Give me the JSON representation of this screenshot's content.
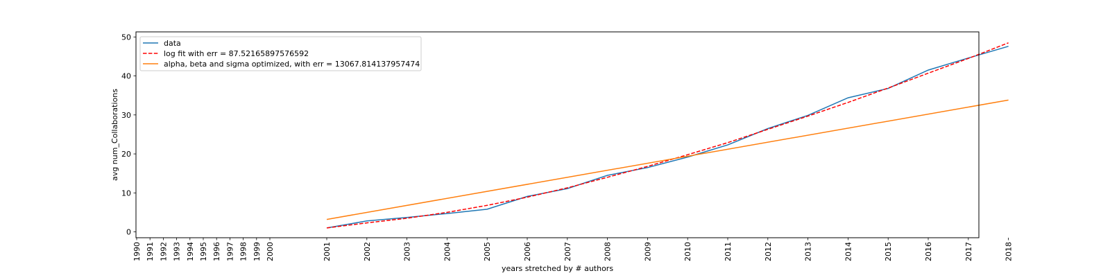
{
  "chart_data": {
    "type": "line",
    "title": "",
    "xlabel": "years stretched by # authors",
    "ylabel": "avg num_Collaborations",
    "x_categories": [
      "1990",
      "1991",
      "1992",
      "1993",
      "1994",
      "1995",
      "1996",
      "1997",
      "1998",
      "1999",
      "2000",
      "2001",
      "2002",
      "2003",
      "2004",
      "2005",
      "2006",
      "2007",
      "2008",
      "2009",
      "2010",
      "2011",
      "2012",
      "2013",
      "2014",
      "2015",
      "2016",
      "2017",
      "2018"
    ],
    "y_ticks": [
      0,
      10,
      20,
      30,
      40,
      50
    ],
    "ylim": [
      -1.5,
      51.3
    ],
    "legend_position": "upper-left",
    "grid": false,
    "series": [
      {
        "name": "data",
        "color": "#1f77b4",
        "style": "solid",
        "x": [
          "2001",
          "2002",
          "2003",
          "2004",
          "2005",
          "2006",
          "2007",
          "2008",
          "2009",
          "2010",
          "2011",
          "2012",
          "2013",
          "2014",
          "2015",
          "2016",
          "2017",
          "2018"
        ],
        "y": [
          1.0,
          2.8,
          3.7,
          4.7,
          5.8,
          9.1,
          11.1,
          14.5,
          16.5,
          19.2,
          22.3,
          26.5,
          29.9,
          34.4,
          36.8,
          41.5,
          44.6,
          47.6
        ]
      },
      {
        "name": "log fit with err = 87.52165897576592",
        "color": "#ff0000",
        "style": "dashed",
        "x": [
          "2001",
          "2002",
          "2003",
          "2004",
          "2005",
          "2006",
          "2007",
          "2008",
          "2009",
          "2010",
          "2011",
          "2012",
          "2013",
          "2014",
          "2015",
          "2016",
          "2017",
          "2018"
        ],
        "y": [
          1.0,
          2.3,
          3.5,
          5.0,
          6.8,
          8.9,
          11.3,
          14.0,
          16.8,
          19.8,
          22.9,
          26.3,
          29.7,
          33.2,
          36.9,
          40.7,
          44.5,
          48.5
        ]
      },
      {
        "name": "alpha, beta and sigma optimized, with err = 13067.814137957474",
        "color": "#ff7f0e",
        "style": "solid",
        "x": [
          "2001",
          "2018"
        ],
        "y": [
          3.2,
          33.8
        ]
      }
    ]
  }
}
